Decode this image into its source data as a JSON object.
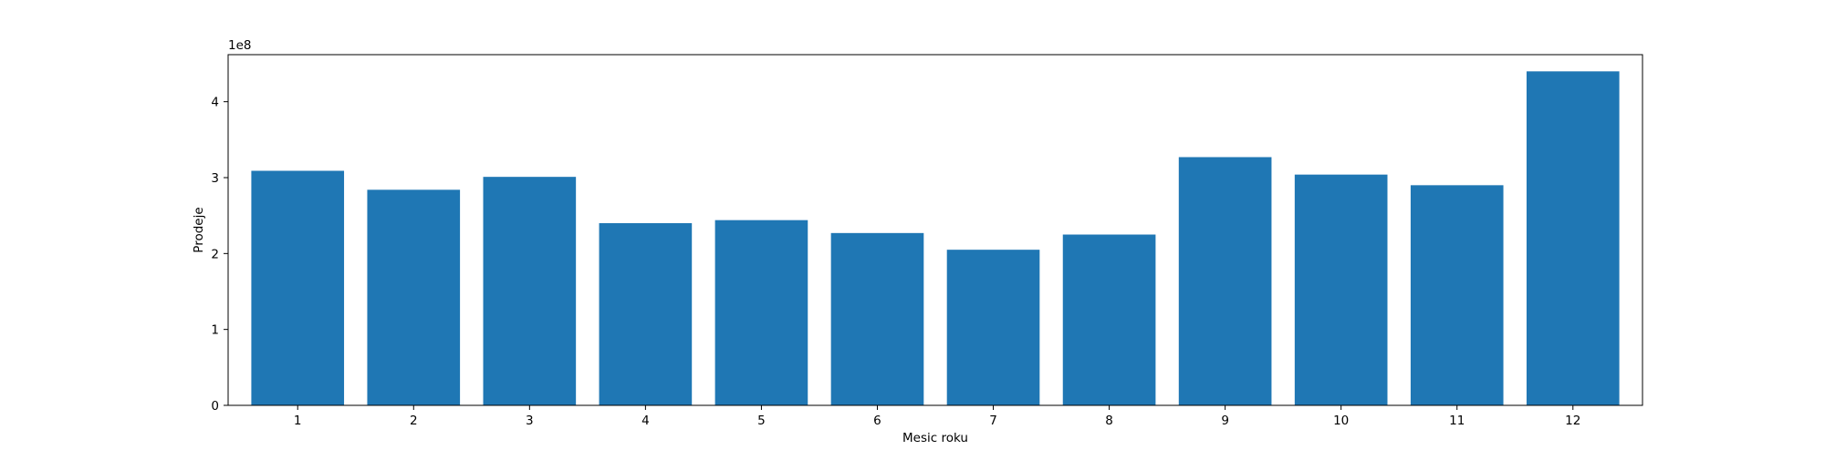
{
  "chart_data": {
    "type": "bar",
    "categories": [
      "1",
      "2",
      "3",
      "4",
      "5",
      "6",
      "7",
      "8",
      "9",
      "10",
      "11",
      "12"
    ],
    "values": [
      309000000,
      284000000,
      301000000,
      240000000,
      244000000,
      227000000,
      205000000,
      225000000,
      327000000,
      304000000,
      290000000,
      440000000
    ],
    "xlabel": "Mesic roku",
    "ylabel": "Prodeje",
    "ylim": [
      0,
      462000000
    ],
    "yticks": [
      0,
      1,
      2,
      3,
      4
    ],
    "ytick_multiplier": 100000000,
    "y_offset_text": "1e8",
    "bar_color": "#1f77b4",
    "grid": false
  }
}
